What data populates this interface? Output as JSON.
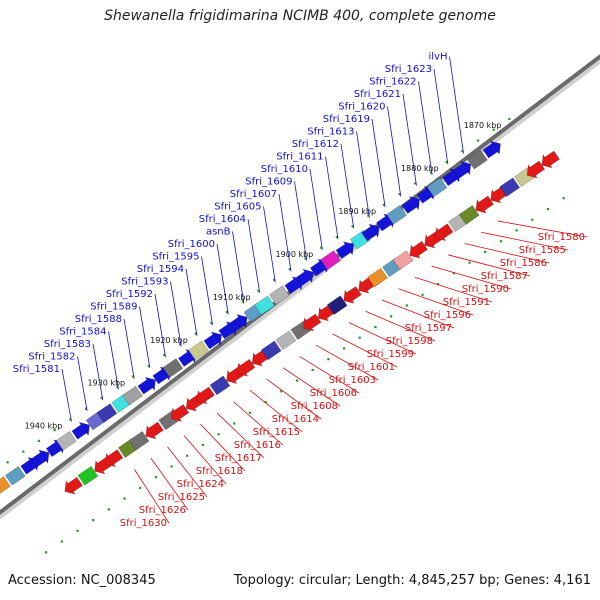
{
  "title": "Shewanella frigidimarina NCIMB 400, complete genome",
  "accession": "Accession: NC_008345",
  "topology": "Topology: circular; Length: 4,845,257 bp; Genes: 4,161",
  "colors": {
    "upper_label": "#1010cc",
    "lower_label": "#d01010",
    "axis": "#6a6a6a",
    "tick": "#229922"
  },
  "kbp_labels": [
    "1870 kbp",
    "1880 kbp",
    "1890 kbp",
    "1900 kbp",
    "1910 kbp",
    "1920 kbp",
    "1930 kbp",
    "1940 kbp"
  ],
  "upper_genes": [
    "Sfri_1581",
    "Sfri_1582",
    "Sfri_1583",
    "Sfri_1584",
    "Sfri_1588",
    "Sfri_1589",
    "Sfri_1592",
    "Sfri_1593",
    "Sfri_1594",
    "Sfri_1595",
    "Sfri_1600",
    "asnB",
    "Sfri_1604",
    "Sfri_1605",
    "Sfri_1607",
    "Sfri_1609",
    "Sfri_1610",
    "Sfri_1611",
    "Sfri_1612",
    "Sfri_1613",
    "Sfri_1619",
    "Sfri_1620",
    "Sfri_1621",
    "Sfri_1622",
    "Sfri_1623",
    "ilvH"
  ],
  "lower_genes": [
    "Sfri_1580",
    "Sfri_1585",
    "Sfri_1586",
    "Sfri_1587",
    "Sfri_1590",
    "Sfri_1591",
    "Sfri_1596",
    "Sfri_1597",
    "Sfri_1598",
    "Sfri_1599",
    "Sfri_1601",
    "Sfri_1603",
    "Sfri_1606",
    "Sfri_1608",
    "Sfri_1614",
    "Sfri_1615",
    "Sfri_1616",
    "Sfri_1617",
    "Sfri_1618",
    "Sfri_1624",
    "Sfri_1625",
    "Sfri_1626",
    "Sfri_1630"
  ],
  "features_upper": [
    {
      "color": "#e8902a",
      "type": "box"
    },
    {
      "color": "#5f9ec0",
      "type": "box"
    },
    {
      "color": "#1414d8",
      "type": "arrow"
    },
    {
      "color": "#1414d8",
      "type": "arrow"
    },
    {
      "color": "#1414d8",
      "type": "arrow"
    },
    {
      "color": "#b4b4b4",
      "type": "box"
    },
    {
      "color": "#1414d8",
      "type": "arrow"
    },
    {
      "color": "#6a6ad0",
      "type": "box"
    },
    {
      "color": "#3a3ab0",
      "type": "box"
    },
    {
      "color": "#40e0e0",
      "type": "box"
    },
    {
      "color": "#a0a0a0",
      "type": "box"
    },
    {
      "color": "#1414d8",
      "type": "arrow"
    },
    {
      "color": "#1414d8",
      "type": "arrow"
    },
    {
      "color": "#707070",
      "type": "box"
    },
    {
      "color": "#1414d8",
      "type": "arrow"
    },
    {
      "color": "#c8c890",
      "type": "box"
    },
    {
      "color": "#1414d8",
      "type": "arrow"
    },
    {
      "color": "#1414d8",
      "type": "arrow"
    },
    {
      "color": "#1414d8",
      "type": "arrow"
    },
    {
      "color": "#5f9ec0",
      "type": "box"
    },
    {
      "color": "#40e0e0",
      "type": "box"
    },
    {
      "color": "#b4b4b4",
      "type": "box"
    },
    {
      "color": "#1414d8",
      "type": "arrow"
    },
    {
      "color": "#1414d8",
      "type": "arrow"
    },
    {
      "color": "#1414d8",
      "type": "arrow"
    },
    {
      "color": "#e01ec0",
      "type": "box"
    },
    {
      "color": "#1414d8",
      "type": "arrow"
    },
    {
      "color": "#40e0e0",
      "type": "box"
    },
    {
      "color": "#1414d8",
      "type": "arrow"
    },
    {
      "color": "#1414d8",
      "type": "arrow"
    },
    {
      "color": "#5f9ec0",
      "type": "box"
    },
    {
      "color": "#1414d8",
      "type": "arrow"
    },
    {
      "color": "#1414d8",
      "type": "arrow"
    },
    {
      "color": "#5f9ec0",
      "type": "box"
    },
    {
      "color": "#1414d8",
      "type": "arrow"
    },
    {
      "color": "#1414d8",
      "type": "arrow"
    },
    {
      "color": "#707070",
      "type": "box"
    },
    {
      "color": "#1414d8",
      "type": "arrow"
    }
  ],
  "features_lower": [
    {
      "color": "#e01818",
      "type": "arrow"
    },
    {
      "color": "#22c422",
      "type": "box"
    },
    {
      "color": "#e01818",
      "type": "arrow"
    },
    {
      "color": "#e01818",
      "type": "arrow"
    },
    {
      "color": "#6a8a2a",
      "type": "box"
    },
    {
      "color": "#707070",
      "type": "box"
    },
    {
      "color": "#e01818",
      "type": "arrow"
    },
    {
      "color": "#707070",
      "type": "box"
    },
    {
      "color": "#e01818",
      "type": "arrow"
    },
    {
      "color": "#e01818",
      "type": "arrow"
    },
    {
      "color": "#e01818",
      "type": "arrow"
    },
    {
      "color": "#3a3ab0",
      "type": "box"
    },
    {
      "color": "#e01818",
      "type": "arrow"
    },
    {
      "color": "#e01818",
      "type": "arrow"
    },
    {
      "color": "#e01818",
      "type": "arrow"
    },
    {
      "color": "#3a3ab0",
      "type": "box"
    },
    {
      "color": "#b4b4b4",
      "type": "box"
    },
    {
      "color": "#707070",
      "type": "box"
    },
    {
      "color": "#e01818",
      "type": "arrow"
    },
    {
      "color": "#e01818",
      "type": "arrow"
    },
    {
      "color": "#20207a",
      "type": "box"
    },
    {
      "color": "#e01818",
      "type": "arrow"
    },
    {
      "color": "#e01818",
      "type": "arrow"
    },
    {
      "color": "#e8902a",
      "type": "box"
    },
    {
      "color": "#5f9ec0",
      "type": "box"
    },
    {
      "color": "#f0a0a0",
      "type": "box"
    },
    {
      "color": "#e01818",
      "type": "arrow"
    },
    {
      "color": "#e01818",
      "type": "arrow"
    },
    {
      "color": "#e01818",
      "type": "arrow"
    },
    {
      "color": "#b4b4b4",
      "type": "box"
    },
    {
      "color": "#6a8a2a",
      "type": "box"
    },
    {
      "color": "#e01818",
      "type": "arrow"
    },
    {
      "color": "#e01818",
      "type": "arrow"
    },
    {
      "color": "#3a3ab0",
      "type": "box"
    },
    {
      "color": "#c8c890",
      "type": "box"
    },
    {
      "color": "#e01818",
      "type": "arrow"
    },
    {
      "color": "#e01818",
      "type": "arrow"
    }
  ]
}
